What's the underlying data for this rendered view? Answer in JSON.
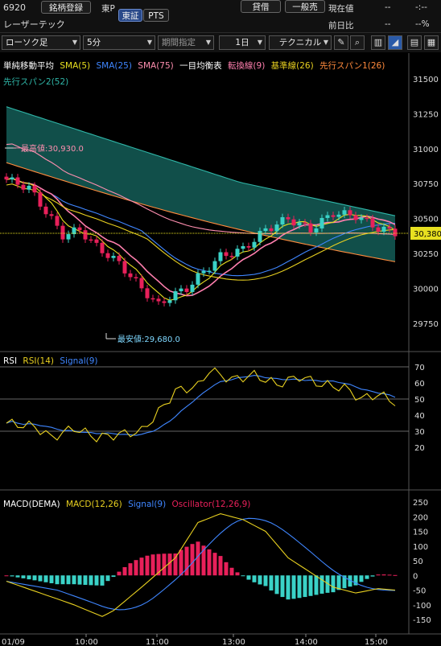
{
  "header": {
    "code": "6920",
    "name": "レーザーテック",
    "register_label": "銘柄登録",
    "market": "東P",
    "exchange_tabs": [
      "東証",
      "PTS"
    ],
    "lend_label": "貸借",
    "type_label": "一般売",
    "current_label": "現在値",
    "current_value": "--",
    "change_label": "前日比",
    "change_value": "--",
    "change_pct": "--%",
    "top_right_value": "-:--"
  },
  "toolbar": {
    "chart_type": "ローソク足",
    "interval": "5分",
    "period": "期間指定",
    "span": "1日",
    "technical": "テクニカル"
  },
  "colors": {
    "up": "#3ad2c7",
    "down": "#e8205a",
    "sma5": "#e8e020",
    "sma25": "#3f86ff",
    "sma75": "#ff8fb0",
    "tenkan": "#ff7fae",
    "kijun": "#e8d020",
    "spanA": "#ff8a3c",
    "spanB": "#2fb6a8",
    "cloud": "#1f8f86",
    "rsi": "#e8d020",
    "signal": "#3f86ff",
    "osc": "#e8205a"
  },
  "main_legend": {
    "title": "単純移動平均",
    "sma5": "SMA(5)",
    "sma25": "SMA(25)",
    "sma75": "SMA(75)",
    "ichimoku": "一目均衡表",
    "tenkan": "転換線(9)",
    "kijun": "基準線(26)",
    "spanA": "先行スパン1(26)",
    "spanB": "先行スパン2(52)"
  },
  "annotations": {
    "high": "一最高値:30,930.0",
    "low": "最安値:29,680.0"
  },
  "price_label": "30,380",
  "price_axis": [
    "31500",
    "31250",
    "31000",
    "30750",
    "30500",
    "30250",
    "30000",
    "29750"
  ],
  "rsi_legend": {
    "title": "RSI",
    "rsi": "RSI(14)",
    "signal": "Signal(9)"
  },
  "rsi_axis": [
    "70",
    "60",
    "50",
    "40",
    "30",
    "20"
  ],
  "macd_legend": {
    "title": "MACD(DEMA)",
    "macd": "MACD(12,26)",
    "signal": "Signal(9)",
    "osc": "Oscillator(12,26,9)"
  },
  "macd_axis": [
    "250",
    "200",
    "150",
    "100",
    "50",
    "0",
    "-50",
    "-100",
    "-150"
  ],
  "time_axis": {
    "date": "01/09",
    "ticks": [
      "10:00",
      "11:00",
      "13:00",
      "14:00",
      "15:00"
    ]
  }
}
